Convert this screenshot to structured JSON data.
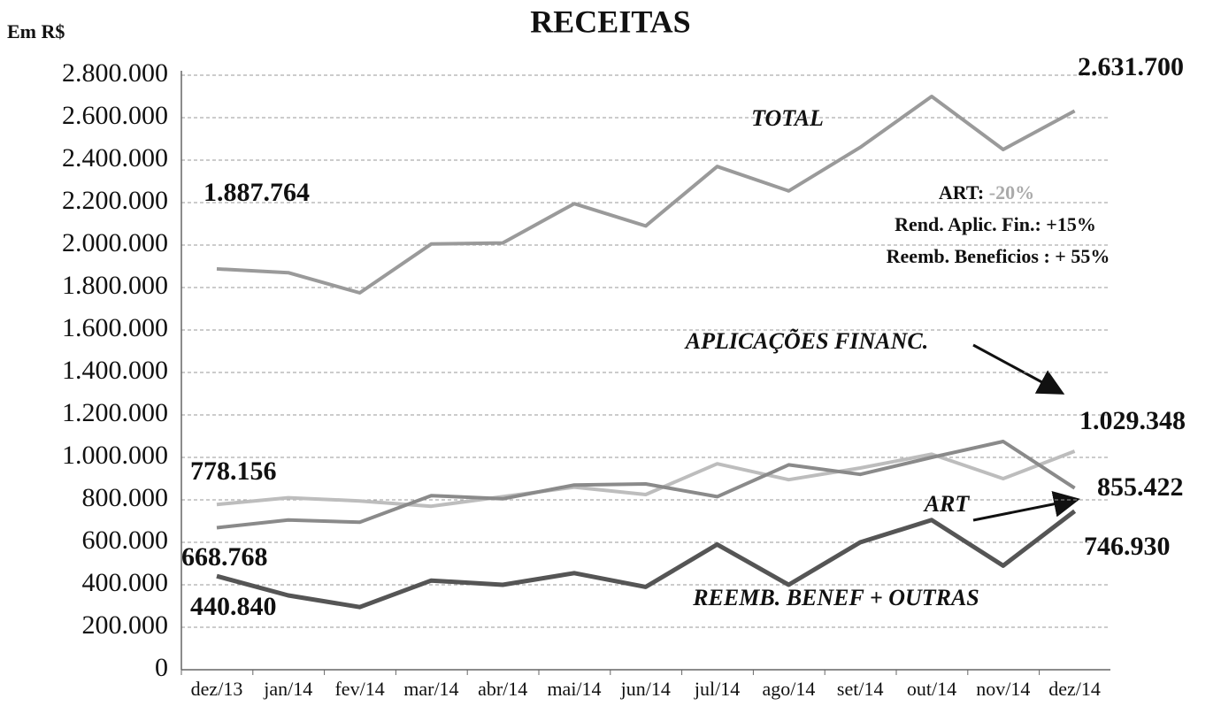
{
  "chart_data": {
    "type": "line",
    "title": "RECEITAS",
    "y_label": "Em R$",
    "categories": [
      "dez/13",
      "jan/14",
      "fev/14",
      "mar/14",
      "abr/14",
      "mai/14",
      "jun/14",
      "jul/14",
      "ago/14",
      "set/14",
      "out/14",
      "nov/14",
      "dez/14"
    ],
    "ylim": [
      0,
      2800000
    ],
    "yticks": [
      0,
      {
        "value": 200000,
        "label": "200.000"
      },
      {
        "value": 400000,
        "label": "400.000"
      },
      {
        "value": 600000,
        "label": "600.000"
      },
      {
        "value": 800000,
        "label": "800.000"
      },
      {
        "value": 1000000,
        "label": "1.000.000"
      },
      {
        "value": 1200000,
        "label": "1.200.000"
      },
      {
        "value": 1400000,
        "label": "1.400.000"
      },
      {
        "value": 1600000,
        "label": "1.600.000"
      },
      {
        "value": 1800000,
        "label": "1.800.000"
      },
      {
        "value": 2000000,
        "label": "2.000.000"
      },
      {
        "value": 2200000,
        "label": "2.200.000"
      },
      {
        "value": 2400000,
        "label": "2.400.000"
      },
      {
        "value": 2600000,
        "label": "2.600.000"
      },
      {
        "value": 2800000,
        "label": "2.800.000"
      }
    ],
    "grid": true,
    "series": [
      {
        "name": "TOTAL",
        "color": "#9a9a9a",
        "values": [
          1887764,
          1870000,
          1775000,
          2005000,
          2010000,
          2195000,
          2090000,
          2370000,
          2255000,
          2460000,
          2700000,
          2450000,
          2631700
        ],
        "value_labels": [
          "1.887.764",
          null,
          null,
          null,
          null,
          null,
          null,
          null,
          null,
          null,
          null,
          null,
          "2.631.700"
        ]
      },
      {
        "name": "APLICAÇÕES FINANC.",
        "color": "#bdbdbd",
        "values": [
          778156,
          810000,
          795000,
          770000,
          815000,
          860000,
          825000,
          970000,
          895000,
          950000,
          1015000,
          900000,
          1029348
        ],
        "value_labels": [
          "778.156",
          null,
          null,
          null,
          null,
          null,
          null,
          null,
          null,
          null,
          null,
          null,
          "1.029.348"
        ]
      },
      {
        "name": "ART",
        "color": "#8a8a8a",
        "values": [
          668768,
          705000,
          695000,
          820000,
          805000,
          870000,
          875000,
          815000,
          965000,
          920000,
          1000000,
          1075000,
          855422
        ],
        "value_labels": [
          "668.768",
          null,
          null,
          null,
          null,
          null,
          null,
          null,
          null,
          null,
          null,
          null,
          "855.422"
        ]
      },
      {
        "name": "REEMB. BENEF + OUTRAS",
        "color": "#555555",
        "values": [
          440840,
          350000,
          295000,
          420000,
          400000,
          455000,
          390000,
          590000,
          400000,
          600000,
          705000,
          490000,
          746930
        ],
        "value_labels": [
          "440.840",
          null,
          null,
          null,
          null,
          null,
          null,
          null,
          null,
          null,
          null,
          null,
          "746.930"
        ]
      }
    ],
    "notes": [
      {
        "label": "ART:",
        "value": "-20%"
      },
      {
        "label": "Rend. Aplic. Fin.:",
        "value": "+15%"
      },
      {
        "label": "Reemb. Beneficios :",
        "value": "+ 55%"
      }
    ]
  }
}
